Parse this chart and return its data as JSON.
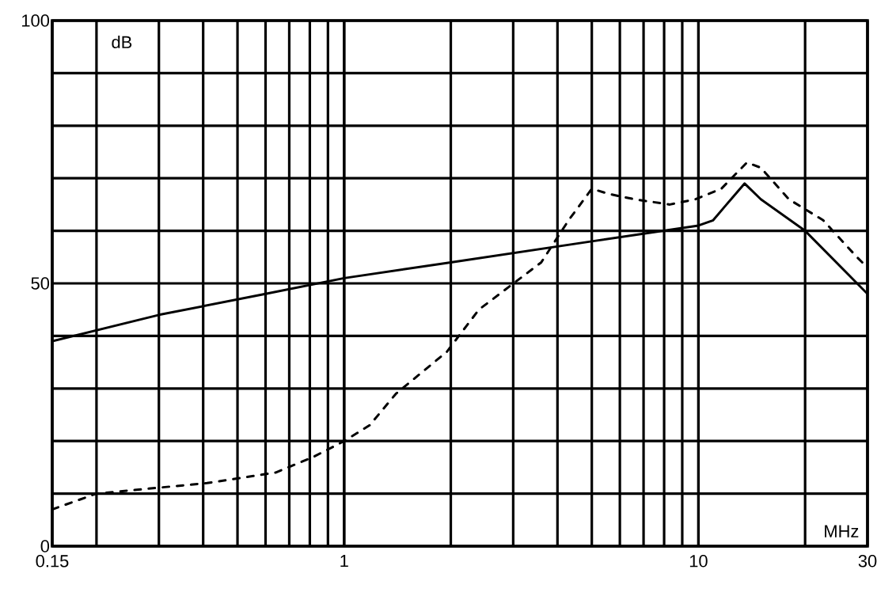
{
  "chart_data": {
    "type": "line",
    "xlabel": "MHz",
    "ylabel": "dB",
    "log": "x",
    "xlim": [
      0.15,
      30
    ],
    "xticks": [
      0.15,
      1,
      10,
      30
    ],
    "ylim": [
      0,
      100
    ],
    "yticks": [
      0,
      50,
      100
    ],
    "grid": true,
    "series": [
      {
        "color": "#000000",
        "line_style": "solid",
        "x": [
          0.15,
          0.3,
          0.6,
          1,
          2,
          5,
          10,
          11,
          12,
          13.5,
          15,
          20,
          30
        ],
        "values": [
          39,
          44,
          48,
          51,
          54,
          58,
          61,
          62,
          65,
          69,
          66,
          60,
          48
        ]
      },
      {
        "color": "#000000",
        "line_style": "dashed",
        "x": [
          0.15,
          0.2,
          0.41,
          0.64,
          0.82,
          1,
          1.18,
          1.4,
          1.95,
          2.4,
          3.6,
          4.3,
          5.0,
          5.6,
          6.6,
          8.3,
          9.8,
          11.6,
          13.7,
          15,
          18,
          22.5,
          28,
          30
        ],
        "values": [
          7,
          10,
          12,
          14,
          17,
          20,
          23,
          29,
          37,
          45,
          54,
          62,
          68,
          67,
          66,
          65,
          66,
          68,
          73,
          72,
          66,
          62,
          55,
          53
        ]
      }
    ]
  }
}
